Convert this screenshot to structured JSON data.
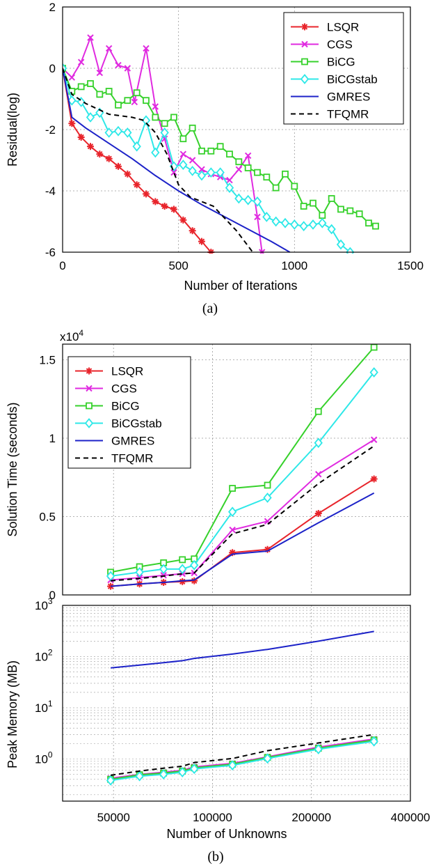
{
  "captions": [
    "(a)",
    "(b)"
  ],
  "colors": {
    "LSQR": "#e8242b",
    "CGS": "#e02ae0",
    "BiCG": "#36d12b",
    "BiCGstab": "#2ee8e8",
    "GMRES": "#1c22c8",
    "TFQMR": "#000000"
  },
  "chart_data": [
    {
      "type": "line",
      "xlabel": "Number of Iterations",
      "ylabel": "Residual(log)",
      "xlim": [
        0,
        1500
      ],
      "ylim": [
        -6,
        2
      ],
      "x_ticks": [
        0,
        500,
        1000,
        1500
      ],
      "y_ticks": [
        -6,
        -4,
        -2,
        0,
        2
      ],
      "grid": true,
      "legend_position": "top-right",
      "series": [
        {
          "name": "LSQR",
          "marker": "asterisk",
          "x": [
            0,
            40,
            80,
            120,
            160,
            200,
            240,
            280,
            320,
            360,
            400,
            440,
            480,
            520,
            560,
            600,
            640
          ],
          "y": [
            0,
            -1.8,
            -2.25,
            -2.55,
            -2.8,
            -2.95,
            -3.2,
            -3.45,
            -3.8,
            -4.1,
            -4.35,
            -4.5,
            -4.6,
            -4.95,
            -5.3,
            -5.65,
            -6.0
          ]
        },
        {
          "name": "CGS",
          "marker": "x",
          "x": [
            0,
            40,
            80,
            120,
            160,
            200,
            240,
            280,
            310,
            360,
            400,
            440,
            480,
            520,
            560,
            600,
            640,
            680,
            720,
            760,
            800,
            840,
            860
          ],
          "y": [
            0,
            -0.3,
            0.2,
            1.0,
            -0.15,
            0.65,
            0.1,
            0.0,
            -1.1,
            0.65,
            -1.25,
            -2.3,
            -3.4,
            -2.8,
            -3.0,
            -3.3,
            -3.45,
            -3.55,
            -3.65,
            -3.3,
            -2.85,
            -4.85,
            -6.0
          ]
        },
        {
          "name": "BiCG",
          "marker": "square",
          "x": [
            0,
            40,
            80,
            120,
            160,
            200,
            240,
            280,
            320,
            360,
            400,
            440,
            480,
            520,
            560,
            600,
            640,
            680,
            720,
            760,
            800,
            840,
            880,
            920,
            960,
            1000,
            1040,
            1080,
            1120,
            1160,
            1200,
            1240,
            1280,
            1320,
            1350
          ],
          "y": [
            0,
            -0.75,
            -0.6,
            -0.5,
            -0.85,
            -0.75,
            -1.2,
            -1.05,
            -0.8,
            -1.05,
            -1.6,
            -1.8,
            -1.6,
            -2.3,
            -1.95,
            -2.7,
            -2.7,
            -2.55,
            -2.8,
            -3.05,
            -3.25,
            -3.4,
            -3.55,
            -3.9,
            -3.45,
            -3.85,
            -4.5,
            -4.4,
            -4.8,
            -4.25,
            -4.6,
            -4.65,
            -4.75,
            -5.05,
            -5.15
          ]
        },
        {
          "name": "BiCGstab",
          "marker": "diamond",
          "x": [
            0,
            40,
            80,
            120,
            160,
            200,
            240,
            280,
            320,
            360,
            400,
            440,
            480,
            520,
            560,
            600,
            640,
            680,
            720,
            760,
            800,
            840,
            880,
            920,
            960,
            1000,
            1040,
            1080,
            1120,
            1160,
            1200,
            1240
          ],
          "y": [
            0,
            -1.05,
            -1.1,
            -1.6,
            -1.45,
            -2.1,
            -2.05,
            -2.1,
            -2.55,
            -1.7,
            -2.75,
            -2.1,
            -3.2,
            -3.15,
            -3.35,
            -3.5,
            -3.4,
            -3.4,
            -3.9,
            -4.25,
            -4.3,
            -4.35,
            -4.85,
            -5.0,
            -5.05,
            -5.1,
            -5.15,
            -5.1,
            -5.05,
            -5.25,
            -5.75,
            -6.0
          ]
        },
        {
          "name": "GMRES",
          "marker": "none",
          "x": [
            0,
            40,
            100,
            200,
            300,
            400,
            500,
            600,
            700,
            800,
            900,
            980
          ],
          "y": [
            0,
            -1.6,
            -1.95,
            -2.45,
            -2.95,
            -3.5,
            -4.0,
            -4.45,
            -4.85,
            -5.25,
            -5.65,
            -6.0
          ]
        },
        {
          "name": "TFQMR",
          "marker": "none",
          "dash": true,
          "x": [
            0,
            40,
            100,
            200,
            300,
            350,
            400,
            450,
            500,
            550,
            600,
            650,
            700,
            750,
            800,
            820
          ],
          "y": [
            0,
            -0.85,
            -1.15,
            -1.5,
            -1.6,
            -1.7,
            -2.1,
            -2.8,
            -3.8,
            -4.2,
            -4.35,
            -4.5,
            -4.9,
            -5.3,
            -5.8,
            -6.0
          ]
        }
      ]
    },
    {
      "type": "line",
      "xlabel": "",
      "ylabel": "Solution Time (seconds)",
      "multiplier": "x10",
      "multiplier_exp": "4",
      "xlim": [
        35000,
        400000
      ],
      "ylim": [
        0,
        16000
      ],
      "y_ticks": [
        0,
        5000,
        10000,
        15000
      ],
      "y_tick_labels": [
        "0",
        "0.5",
        "1",
        "1.5"
      ],
      "x_ticks": [
        50000,
        100000,
        200000,
        400000
      ],
      "x_scale": "log",
      "grid": true,
      "legend_position": "top-left",
      "x": [
        49000,
        60000,
        71000,
        81000,
        88000,
        115000,
        147000,
        210000,
        310000
      ],
      "series": [
        {
          "name": "LSQR",
          "marker": "asterisk",
          "values": [
            550,
            700,
            800,
            850,
            900,
            2700,
            2900,
            5200,
            7400
          ]
        },
        {
          "name": "CGS",
          "marker": "x",
          "values": [
            950,
            1100,
            1250,
            1350,
            1400,
            4150,
            4700,
            7700,
            9900
          ]
        },
        {
          "name": "BiCG",
          "marker": "square",
          "values": [
            1450,
            1800,
            2050,
            2250,
            2300,
            6800,
            7000,
            11700,
            15800
          ]
        },
        {
          "name": "BiCGstab",
          "marker": "diamond",
          "values": [
            1200,
            1450,
            1650,
            1650,
            1900,
            5300,
            6200,
            9700,
            14200
          ]
        },
        {
          "name": "GMRES",
          "marker": "none",
          "values": [
            550,
            700,
            800,
            900,
            950,
            2600,
            2800,
            4600,
            6500
          ]
        },
        {
          "name": "TFQMR",
          "marker": "none",
          "dash": true,
          "values": [
            900,
            1050,
            1200,
            1350,
            1400,
            3900,
            4500,
            7100,
            9500
          ]
        }
      ]
    },
    {
      "type": "line",
      "xlabel": "Number of Unknowns",
      "ylabel": "Peak Memory (MB)",
      "xlim": [
        35000,
        400000
      ],
      "x_scale": "log",
      "y_scale": "log",
      "ylim": [
        0.15,
        1000
      ],
      "x_ticks": [
        50000,
        100000,
        200000,
        400000
      ],
      "x_tick_labels": [
        "50000",
        "100000",
        "200000",
        "400000"
      ],
      "y_tick_base": "10",
      "y_tick_exponents": [
        "0",
        "1",
        "2",
        "3"
      ],
      "grid": true,
      "x": [
        49000,
        60000,
        71000,
        81000,
        88000,
        115000,
        147000,
        210000,
        310000
      ],
      "series": [
        {
          "name": "LSQR",
          "marker": "asterisk",
          "values": [
            0.4,
            0.48,
            0.52,
            0.57,
            0.66,
            0.78,
            1.05,
            1.6,
            2.3
          ]
        },
        {
          "name": "CGS",
          "marker": "x",
          "values": [
            0.42,
            0.5,
            0.55,
            0.6,
            0.7,
            0.82,
            1.1,
            1.7,
            2.45
          ]
        },
        {
          "name": "BiCG",
          "marker": "square",
          "values": [
            0.4,
            0.49,
            0.53,
            0.58,
            0.67,
            0.79,
            1.07,
            1.62,
            2.35
          ]
        },
        {
          "name": "BiCGstab",
          "marker": "diamond",
          "values": [
            0.38,
            0.46,
            0.5,
            0.55,
            0.64,
            0.75,
            1.02,
            1.55,
            2.2
          ]
        },
        {
          "name": "GMRES",
          "marker": "none",
          "values": [
            60,
            68,
            76,
            83,
            92,
            112,
            138,
            200,
            310
          ]
        },
        {
          "name": "TFQMR",
          "marker": "none",
          "dash": true,
          "values": [
            0.48,
            0.58,
            0.66,
            0.72,
            0.85,
            1.02,
            1.45,
            2.05,
            3.0
          ]
        }
      ]
    }
  ]
}
